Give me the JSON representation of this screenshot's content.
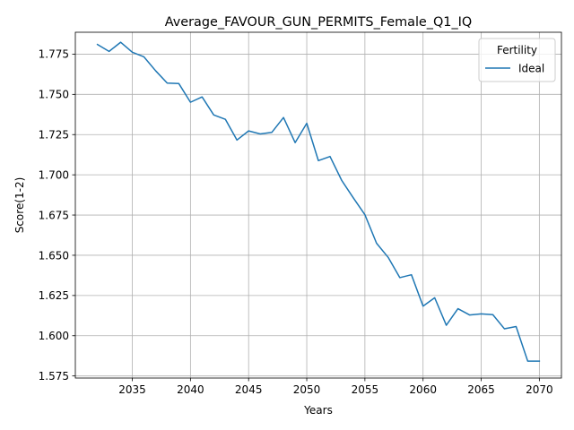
{
  "chart_data": {
    "type": "line",
    "title": "Average_FAVOUR_GUN_PERMITS_Female_Q1_IQ",
    "xlabel": "Years",
    "ylabel": "Score(1-2)",
    "xlim": [
      2030.1,
      2071.9
    ],
    "ylim": [
      1.5737,
      1.7886
    ],
    "x_ticks": [
      2035,
      2040,
      2045,
      2050,
      2055,
      2060,
      2065,
      2070
    ],
    "x_tick_labels": [
      "2035",
      "2040",
      "2045",
      "2050",
      "2055",
      "2060",
      "2065",
      "2070"
    ],
    "y_ticks": [
      1.575,
      1.6,
      1.625,
      1.65,
      1.675,
      1.7,
      1.725,
      1.75,
      1.775
    ],
    "y_tick_labels": [
      "1.575",
      "1.600",
      "1.625",
      "1.650",
      "1.675",
      "1.700",
      "1.725",
      "1.750",
      "1.775"
    ],
    "grid": true,
    "legend": {
      "title": "Fertility",
      "placement": "top-right"
    },
    "series": [
      {
        "name": "Ideal",
        "color": "#1f77b4",
        "x": [
          2032,
          2033,
          2034,
          2035,
          2036,
          2037,
          2038,
          2039,
          2040,
          2041,
          2042,
          2043,
          2044,
          2045,
          2046,
          2047,
          2048,
          2049,
          2050,
          2051,
          2052,
          2053,
          2054,
          2055,
          2056,
          2057,
          2058,
          2059,
          2060,
          2061,
          2062,
          2063,
          2064,
          2065,
          2066,
          2067,
          2068,
          2069,
          2070
        ],
        "values": [
          1.781,
          1.7767,
          1.7824,
          1.7762,
          1.7733,
          1.7647,
          1.757,
          1.7567,
          1.7451,
          1.7484,
          1.7372,
          1.7345,
          1.7216,
          1.7273,
          1.7254,
          1.7264,
          1.7356,
          1.72,
          1.732,
          1.7088,
          1.7114,
          1.6966,
          1.6857,
          1.6752,
          1.6575,
          1.6487,
          1.6361,
          1.6379,
          1.6184,
          1.6236,
          1.6065,
          1.6168,
          1.6129,
          1.6136,
          1.6131,
          1.6043,
          1.6057,
          1.5842,
          1.5842
        ]
      }
    ]
  }
}
